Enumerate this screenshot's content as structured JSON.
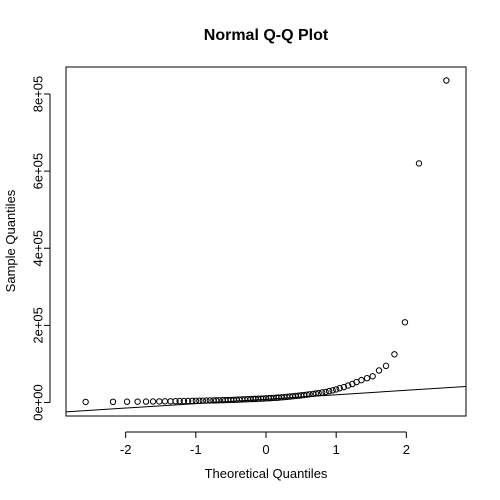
{
  "chart_data": {
    "type": "scatter",
    "title": "Normal Q-Q Plot",
    "xlabel": "Theoretical Quantiles",
    "ylabel": "Sample Quantiles",
    "xlim": [
      -2.85,
      2.85
    ],
    "ylim": [
      -35000,
      870000
    ],
    "xticks": [
      -2,
      -1,
      0,
      1,
      2
    ],
    "xtick_labels": [
      "-2",
      "-1",
      "0",
      "1",
      "2"
    ],
    "yticks": [
      0,
      200000,
      400000,
      600000,
      800000
    ],
    "ytick_labels": [
      "0e+00",
      "2e+05",
      "4e+05",
      "6e+05",
      "8e+05"
    ],
    "grid": false,
    "reference_line": {
      "slope": 11500,
      "intercept": 8600
    },
    "points": [
      [
        -2.57,
        1500
      ],
      [
        -2.18,
        1800
      ],
      [
        -1.98,
        2000
      ],
      [
        -1.83,
        2200
      ],
      [
        -1.71,
        2400
      ],
      [
        -1.61,
        2600
      ],
      [
        -1.52,
        2800
      ],
      [
        -1.44,
        3000
      ],
      [
        -1.36,
        3200
      ],
      [
        -1.29,
        3400
      ],
      [
        -1.23,
        3600
      ],
      [
        -1.17,
        3800
      ],
      [
        -1.11,
        4000
      ],
      [
        -1.05,
        4200
      ],
      [
        -1.0,
        4400
      ],
      [
        -0.95,
        4600
      ],
      [
        -0.9,
        4800
      ],
      [
        -0.85,
        5000
      ],
      [
        -0.8,
        5200
      ],
      [
        -0.75,
        5400
      ],
      [
        -0.71,
        5600
      ],
      [
        -0.67,
        5800
      ],
      [
        -0.62,
        6000
      ],
      [
        -0.58,
        6200
      ],
      [
        -0.54,
        6400
      ],
      [
        -0.5,
        6700
      ],
      [
        -0.46,
        7000
      ],
      [
        -0.42,
        7300
      ],
      [
        -0.38,
        7600
      ],
      [
        -0.34,
        7900
      ],
      [
        -0.3,
        8200
      ],
      [
        -0.26,
        8500
      ],
      [
        -0.22,
        8800
      ],
      [
        -0.18,
        9100
      ],
      [
        -0.15,
        9400
      ],
      [
        -0.11,
        9700
      ],
      [
        -0.07,
        10000
      ],
      [
        -0.04,
        10300
      ],
      [
        0.0,
        10700
      ],
      [
        0.04,
        11100
      ],
      [
        0.07,
        11500
      ],
      [
        0.11,
        11900
      ],
      [
        0.15,
        12300
      ],
      [
        0.18,
        12800
      ],
      [
        0.22,
        13400
      ],
      [
        0.26,
        14000
      ],
      [
        0.3,
        14700
      ],
      [
        0.34,
        15400
      ],
      [
        0.38,
        16100
      ],
      [
        0.42,
        16900
      ],
      [
        0.46,
        17700
      ],
      [
        0.5,
        18500
      ],
      [
        0.54,
        19400
      ],
      [
        0.58,
        20300
      ],
      [
        0.62,
        21300
      ],
      [
        0.67,
        22300
      ],
      [
        0.71,
        23400
      ],
      [
        0.75,
        24600
      ],
      [
        0.8,
        26000
      ],
      [
        0.85,
        27500
      ],
      [
        0.9,
        29500
      ],
      [
        0.95,
        31500
      ],
      [
        1.0,
        34000
      ],
      [
        1.05,
        37000
      ],
      [
        1.11,
        40000
      ],
      [
        1.17,
        44000
      ],
      [
        1.23,
        48000
      ],
      [
        1.29,
        53000
      ],
      [
        1.36,
        58000
      ],
      [
        1.44,
        63000
      ],
      [
        1.52,
        68000
      ],
      [
        1.61,
        83000
      ],
      [
        1.71,
        95000
      ],
      [
        1.83,
        125000
      ],
      [
        1.98,
        208000
      ],
      [
        2.18,
        620000
      ],
      [
        2.57,
        835000
      ]
    ]
  }
}
